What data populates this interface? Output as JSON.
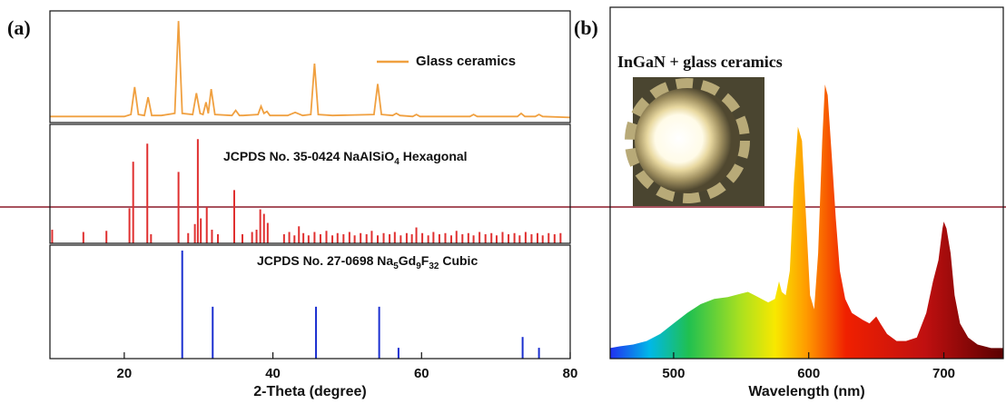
{
  "chart_data": [
    {
      "type": "line",
      "panel_label": "(a)",
      "legend": "upper right",
      "xlim": [
        10,
        80
      ],
      "ylim": [
        0,
        110
      ],
      "series": [
        {
          "name": "Glass ceramics",
          "color": "#f0a040",
          "x": [
            10,
            15,
            20,
            20.9,
            21.4,
            21.9,
            22.7,
            23.2,
            23.7,
            25,
            26.8,
            27.3,
            27.8,
            29.2,
            29.7,
            30.2,
            30.6,
            31.0,
            31.3,
            31.7,
            32.2,
            34.5,
            35.0,
            35.5,
            36,
            38.0,
            38.4,
            38.8,
            39.2,
            39.6,
            42,
            43,
            44,
            45.1,
            45.6,
            46.1,
            48,
            53.6,
            54.1,
            54.6,
            56.1,
            56.6,
            57.1,
            58.8,
            59.3,
            59.8,
            63,
            66.5,
            67,
            67.5,
            72.9,
            73.4,
            73.9,
            75.3,
            75.8,
            76.3,
            80
          ],
          "values": [
            6,
            6,
            6,
            8,
            35,
            8,
            7,
            25,
            7,
            7,
            9,
            100,
            9,
            8,
            29,
            9,
            8,
            20,
            9,
            33,
            8,
            7,
            12,
            7,
            7,
            8,
            16,
            9,
            11,
            7,
            7,
            10,
            7,
            8,
            58,
            8,
            7,
            8,
            38,
            8,
            7,
            9,
            7,
            6,
            8,
            6,
            6,
            6,
            8,
            6,
            6,
            9,
            6,
            6,
            8,
            6,
            5
          ]
        }
      ]
    },
    {
      "type": "stem",
      "label_parts": [
        "JCPDS No. 35-0424 NaAlSiO",
        "4",
        " Hexagonal"
      ],
      "color": "#e03030",
      "xlim": [
        10,
        80
      ],
      "ylim": [
        0,
        105
      ],
      "x": [
        10.3,
        14.5,
        17.6,
        20.7,
        21.2,
        23.1,
        23.6,
        27.3,
        28.6,
        29.5,
        29.9,
        30.3,
        31.1,
        31.8,
        32.6,
        34.8,
        35.9,
        37.2,
        37.8,
        38.3,
        38.8,
        39.3,
        41.5,
        42.2,
        42.9,
        43.5,
        44.1,
        44.8,
        45.6,
        46.4,
        47.2,
        48.0,
        48.7,
        49.5,
        50.3,
        51.0,
        51.8,
        52.6,
        53.3,
        54.1,
        54.9,
        55.7,
        56.4,
        57.2,
        58.0,
        58.7,
        59.3,
        60.1,
        60.9,
        61.6,
        62.4,
        63.2,
        64.0,
        64.7,
        65.5,
        66.3,
        67.0,
        67.8,
        68.6,
        69.4,
        70.1,
        70.9,
        71.7,
        72.5,
        73.2,
        74.0,
        74.8,
        75.6,
        76.3,
        77.1,
        77.9,
        78.7
      ],
      "values": [
        12,
        10,
        11,
        31,
        72,
        88,
        8,
        63,
        9,
        17,
        92,
        22,
        32,
        12,
        8,
        47,
        8,
        10,
        12,
        30,
        26,
        18,
        8,
        10,
        7,
        15,
        9,
        7,
        10,
        8,
        11,
        7,
        9,
        8,
        10,
        7,
        9,
        8,
        11,
        7,
        9,
        8,
        10,
        7,
        9,
        8,
        14,
        9,
        7,
        10,
        8,
        9,
        7,
        11,
        8,
        9,
        7,
        10,
        8,
        9,
        7,
        10,
        8,
        9,
        7,
        10,
        8,
        9,
        7,
        9,
        8,
        9
      ]
    },
    {
      "type": "stem",
      "label_parts": [
        "JCPDS No. 27-0698 Na",
        "5",
        "Gd",
        "9",
        "F",
        "32",
        " Cubic"
      ],
      "color": "#1a2ed0",
      "xlim": [
        10,
        80
      ],
      "ylim": [
        0,
        105
      ],
      "xticks": [
        20,
        40,
        60,
        80
      ],
      "x_label": "2-Theta (degree)",
      "x": [
        27.8,
        31.9,
        45.8,
        54.3,
        56.9,
        73.6,
        75.8
      ],
      "values": [
        100,
        48,
        48,
        48,
        10,
        20,
        10
      ]
    },
    {
      "type": "area",
      "panel_label": "(b)",
      "annotation": "InGaN + glass ceramics",
      "x_label": "Wavelength (nm)",
      "xlim": [
        453,
        744
      ],
      "xticks": [
        500,
        600,
        700
      ],
      "ylim": [
        0,
        100
      ],
      "x": [
        453,
        460,
        470,
        480,
        490,
        500,
        510,
        520,
        530,
        540,
        550,
        555,
        560,
        570,
        575,
        578,
        580,
        583,
        586,
        589,
        592,
        595,
        598,
        601,
        604,
        607,
        610,
        612,
        614,
        617,
        620,
        623,
        627,
        632,
        640,
        645,
        650,
        653,
        658,
        665,
        672,
        680,
        687,
        692,
        696,
        699,
        700,
        702,
        705,
        708,
        712,
        718,
        725,
        735,
        744
      ],
      "values": [
        3,
        3.5,
        4,
        5,
        7,
        10,
        13,
        15.5,
        17,
        17.5,
        18.5,
        19,
        18,
        16,
        17,
        22,
        19,
        18,
        25,
        50,
        66,
        62,
        40,
        18,
        14,
        30,
        62,
        78,
        75,
        58,
        40,
        25,
        17,
        13,
        11,
        10,
        12,
        10,
        7,
        5,
        5,
        6,
        13,
        22,
        28,
        37,
        39,
        37,
        30,
        18,
        10,
        6,
        4,
        3,
        3
      ]
    }
  ]
}
